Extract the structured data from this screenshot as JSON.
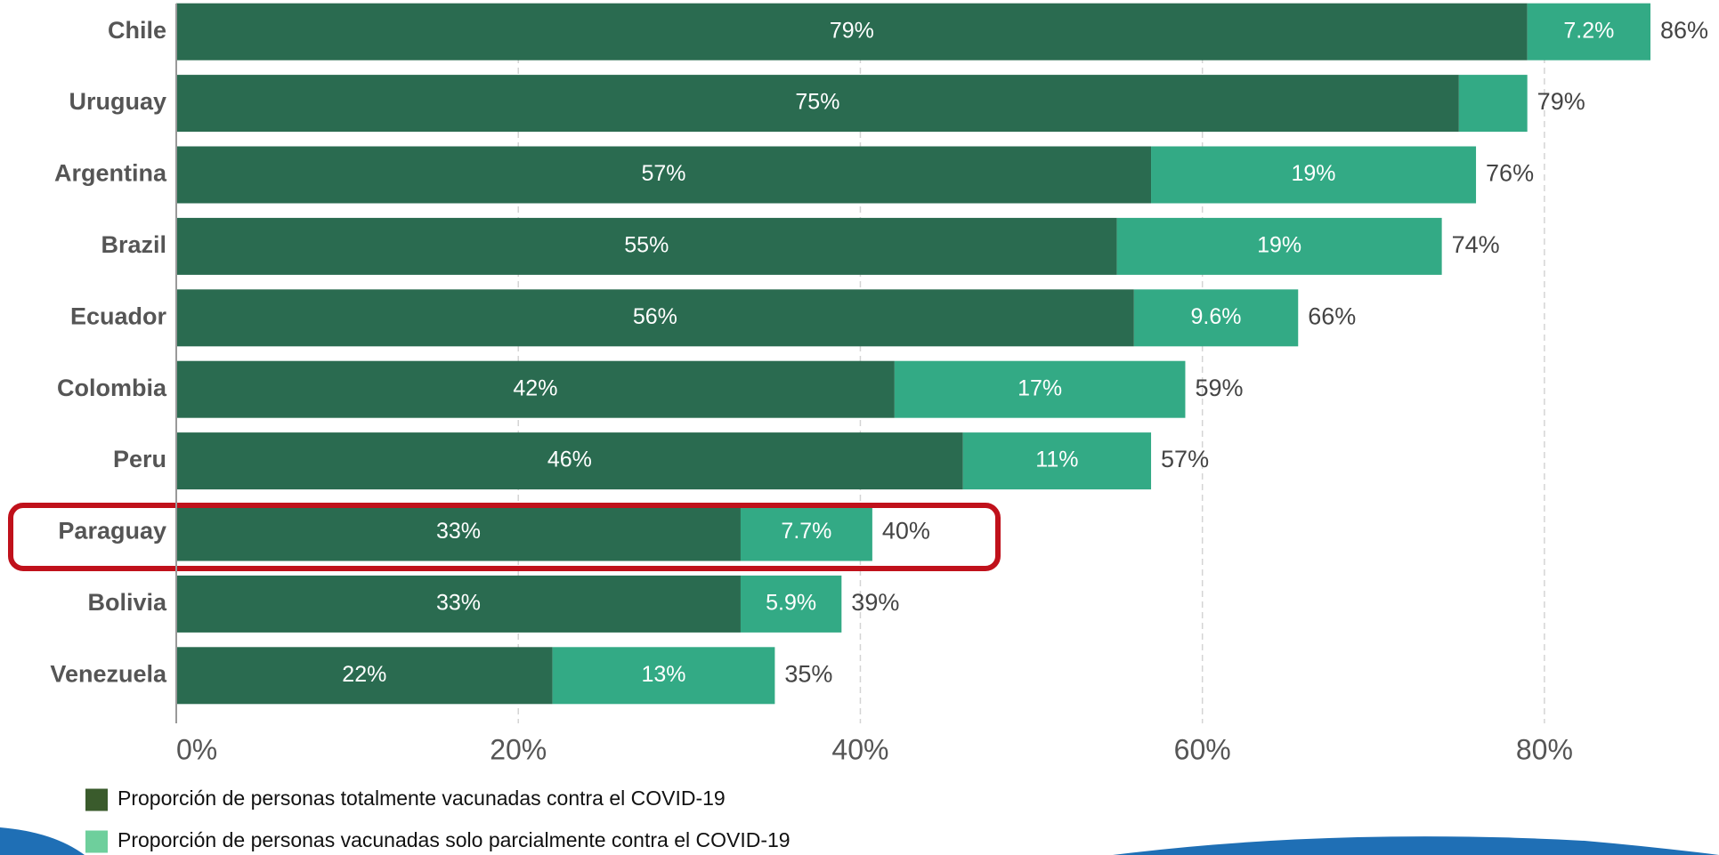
{
  "chart_data": {
    "type": "stacked-hbar",
    "categories": [
      "Chile",
      "Uruguay",
      "Argentina",
      "Brazil",
      "Ecuador",
      "Colombia",
      "Peru",
      "Paraguay",
      "Bolivia",
      "Venezuela"
    ],
    "series": [
      {
        "name": "Proporción de personas totalmente vacunadas contra el COVID-19",
        "color": "#2a6b50",
        "values": [
          79,
          75,
          57,
          55,
          56,
          42,
          46,
          33,
          33,
          22
        ],
        "value_labels": [
          "79%",
          "75%",
          "57%",
          "55%",
          "56%",
          "42%",
          "46%",
          "33%",
          "33%",
          "22%"
        ]
      },
      {
        "name": "Proporción de personas vacunadas solo parcialmente contra el COVID-19",
        "color": "#33aa85",
        "values": [
          7.2,
          4,
          19,
          19,
          9.6,
          17,
          11,
          7.7,
          5.9,
          13
        ],
        "value_labels": [
          "7.2%",
          null,
          "19%",
          "19%",
          "9.6%",
          "17%",
          "11%",
          "7.7%",
          "5.9%",
          "13%"
        ]
      }
    ],
    "totals": [
      86,
      79,
      76,
      74,
      66,
      59,
      57,
      40,
      39,
      35
    ],
    "total_labels": [
      "86%",
      "79%",
      "76%",
      "74%",
      "66%",
      "59%",
      "57%",
      "40%",
      "39%",
      "35%"
    ],
    "xlim": [
      0,
      90
    ],
    "xticks": [
      {
        "value": 0,
        "label": "0%"
      },
      {
        "value": 20,
        "label": "20%"
      },
      {
        "value": 40,
        "label": "40%"
      },
      {
        "value": 60,
        "label": "60%"
      },
      {
        "value": 80,
        "label": "80%"
      }
    ],
    "grid": true
  }
}
